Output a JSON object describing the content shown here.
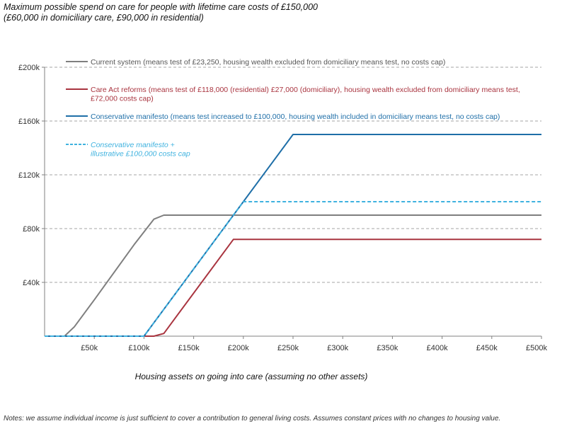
{
  "chart_data": {
    "type": "line",
    "title_lines": [
      "Maximum possible spend on care for people with lifetime care costs of £150,000",
      "(£60,000 in domiciliary care, £90,000 in residential)"
    ],
    "xlabel": "Housing assets on going into care (assuming no other assets)",
    "ylabel": "",
    "xlim": [
      0,
      500000
    ],
    "ylim": [
      0,
      200000
    ],
    "x_ticks": [
      {
        "value": 50000,
        "label": "£50k"
      },
      {
        "value": 100000,
        "label": "£100k"
      },
      {
        "value": 150000,
        "label": "£150k"
      },
      {
        "value": 200000,
        "label": "£200k"
      },
      {
        "value": 250000,
        "label": "£250k"
      },
      {
        "value": 300000,
        "label": "£300k"
      },
      {
        "value": 350000,
        "label": "£350k"
      },
      {
        "value": 400000,
        "label": "£400k"
      },
      {
        "value": 450000,
        "label": "£450k"
      },
      {
        "value": 500000,
        "label": "£500k"
      }
    ],
    "y_ticks": [
      {
        "value": 40000,
        "label": "£40k"
      },
      {
        "value": 80000,
        "label": "£80k"
      },
      {
        "value": 120000,
        "label": "£120k"
      },
      {
        "value": 160000,
        "label": "£160k"
      },
      {
        "value": 200000,
        "label": "£200k"
      }
    ],
    "grid": "horizontal-dashed",
    "legend_position": "top-left-inside",
    "series": [
      {
        "name_lines": [
          "Current system (means test of £23,250, housing wealth excluded from domiciliary means test, no costs cap)"
        ],
        "color": "#7f7f7f",
        "dashed": false,
        "points": [
          [
            0,
            0
          ],
          [
            20000,
            0
          ],
          [
            30000,
            7000
          ],
          [
            50000,
            27000
          ],
          [
            90000,
            68000
          ],
          [
            110000,
            87000
          ],
          [
            120000,
            90000
          ],
          [
            500000,
            90000
          ]
        ]
      },
      {
        "name_lines": [
          "Care Act reforms (means test of £118,000 (residential) £27,000 (domiciliary), housing wealth excluded from domiciliary means test,",
          "£72,000 costs cap)"
        ],
        "color": "#a9343f",
        "dashed": false,
        "points": [
          [
            0,
            0
          ],
          [
            110000,
            0
          ],
          [
            120000,
            2000
          ],
          [
            130000,
            12000
          ],
          [
            190000,
            72000
          ],
          [
            500000,
            72000
          ]
        ]
      },
      {
        "name_lines": [
          "Conservative manifesto (means test increased to £100,000, housing wealth included in domiciliary means test, no costs cap)"
        ],
        "color": "#1f6fa8",
        "dashed": false,
        "points": [
          [
            0,
            0
          ],
          [
            100000,
            0
          ],
          [
            200000,
            100000
          ],
          [
            250000,
            150000
          ],
          [
            500000,
            150000
          ]
        ]
      },
      {
        "name_lines": [
          "Conservative manifesto +",
          "illustrative £100,000 costs cap"
        ],
        "color": "#3fb2df",
        "dashed": true,
        "points": [
          [
            0,
            0
          ],
          [
            100000,
            0
          ],
          [
            200000,
            100000
          ],
          [
            500000,
            100000
          ]
        ]
      }
    ]
  },
  "notes": "Notes: we assume individual income is just sufficient to cover a contribution to general living costs. Assumes constant prices with no changes to housing value."
}
